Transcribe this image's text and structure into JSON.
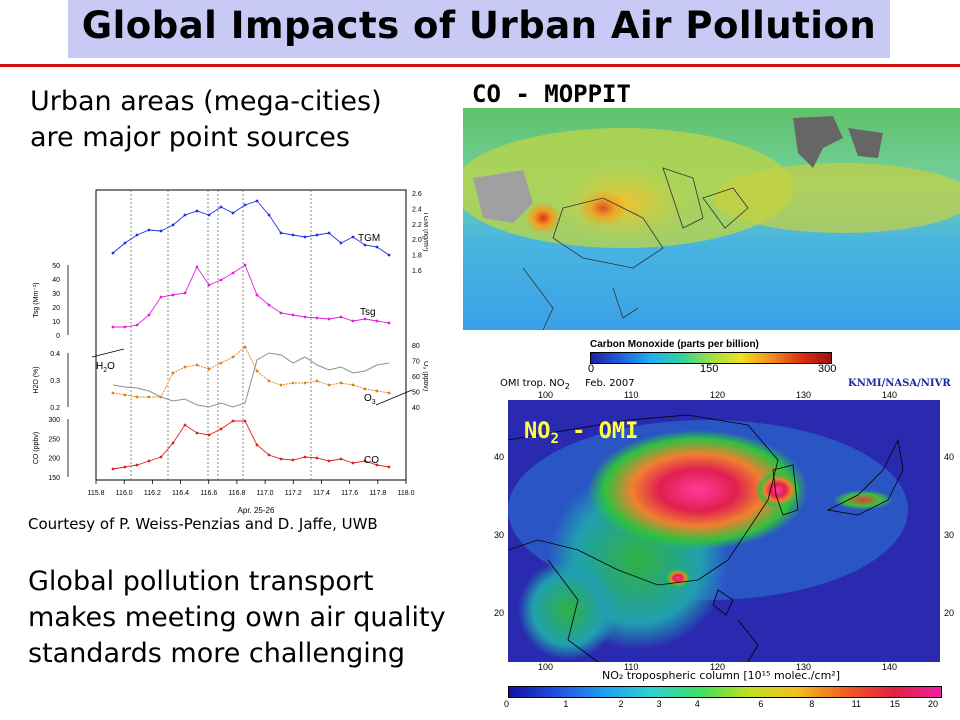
{
  "title": "Global Impacts of Urban Air Pollution",
  "intro": {
    "line1": "Urban areas (mega-cities)",
    "line2": "are major point sources"
  },
  "credit": "Courtesy of P. Weiss-Penzias and D. Jaffe, UWB",
  "transport": {
    "line1": "Global pollution transport",
    "line2": "makes meeting own air quality",
    "line3": "standards more challenging"
  },
  "co_panel": {
    "label": "CO - MOPPIT",
    "colorbar_title": "Carbon Monoxide (parts per billion)",
    "ticks": [
      "0",
      "150",
      "300"
    ]
  },
  "no2_panel": {
    "header_left": "OMI trop. NO",
    "header_sub": "2",
    "header_date": "Feb. 2007",
    "credit": "KNMI/NASA/NIVR",
    "overlay_label": "NO",
    "overlay_sub": "2",
    "overlay_rest": " - OMI",
    "lon_ticks": [
      "100",
      "110",
      "120",
      "130",
      "140"
    ],
    "lat_ticks": [
      "40",
      "30",
      "20"
    ],
    "colorbar_caption": "NO₂ tropospheric column [10¹⁵ molec./cm²]",
    "colorbar_ticks": [
      "0",
      "1",
      "2",
      "3",
      "4",
      "6",
      "8",
      "11",
      "15",
      "20"
    ]
  },
  "timeseries": {
    "xticks": [
      "115.8",
      "116.0",
      "116.2",
      "116.4",
      "116.6",
      "116.8",
      "117.0",
      "117.2",
      "117.4",
      "117.6",
      "117.8",
      "118.0"
    ],
    "xlabel": "Apr. 25-26",
    "series_labels": [
      "TGM",
      "Tsg",
      "O",
      "CO",
      "H",
      "O"
    ],
    "o3_sub": "3",
    "h2o_sub": "2",
    "left_axes": [
      {
        "label": "Tsg (Mm⁻¹)",
        "ticks": [
          "50",
          "40",
          "30",
          "20",
          "10",
          "0"
        ]
      },
      {
        "label": "H2O (%)",
        "ticks": [
          "0.4",
          "0.3",
          "0.2"
        ]
      },
      {
        "label": "CO (ppbv)",
        "ticks": [
          "300",
          "250",
          "200",
          "150"
        ]
      }
    ],
    "right_axes": [
      {
        "label": "TGM (ng/m³)",
        "ticks": [
          "2.6",
          "2.4",
          "2.2",
          "2.0",
          "1.8",
          "1.6"
        ]
      },
      {
        "label": "O₃ (ppbv)",
        "ticks": [
          "80",
          "70",
          "60",
          "50",
          "40"
        ]
      }
    ],
    "colors": {
      "tgm": "#2030e0",
      "tsg": "#e020e0",
      "o3": "#e08010",
      "co": "#e02020",
      "h2o": "#909090"
    }
  }
}
